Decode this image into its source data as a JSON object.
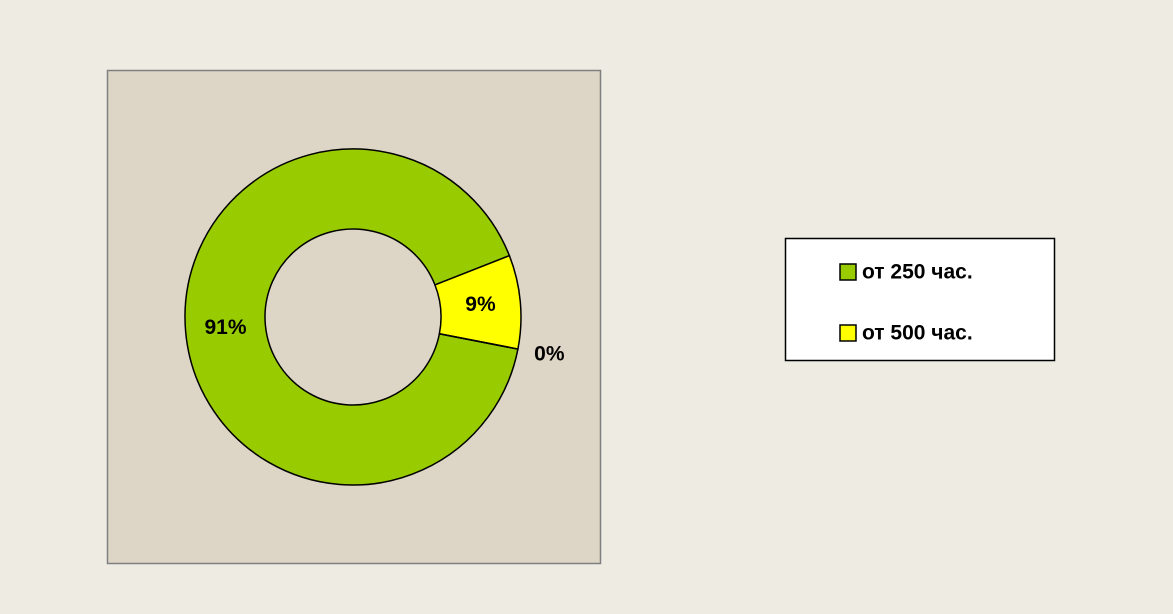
{
  "chart_data": {
    "type": "donut",
    "categories": [
      "от 250 час.",
      "от 500 час.",
      null
    ],
    "values": [
      91,
      9,
      0
    ],
    "value_labels": [
      "91%",
      "9%",
      "0%"
    ],
    "colors": [
      "#99cc00",
      "#ffff00"
    ],
    "legend": "right"
  }
}
